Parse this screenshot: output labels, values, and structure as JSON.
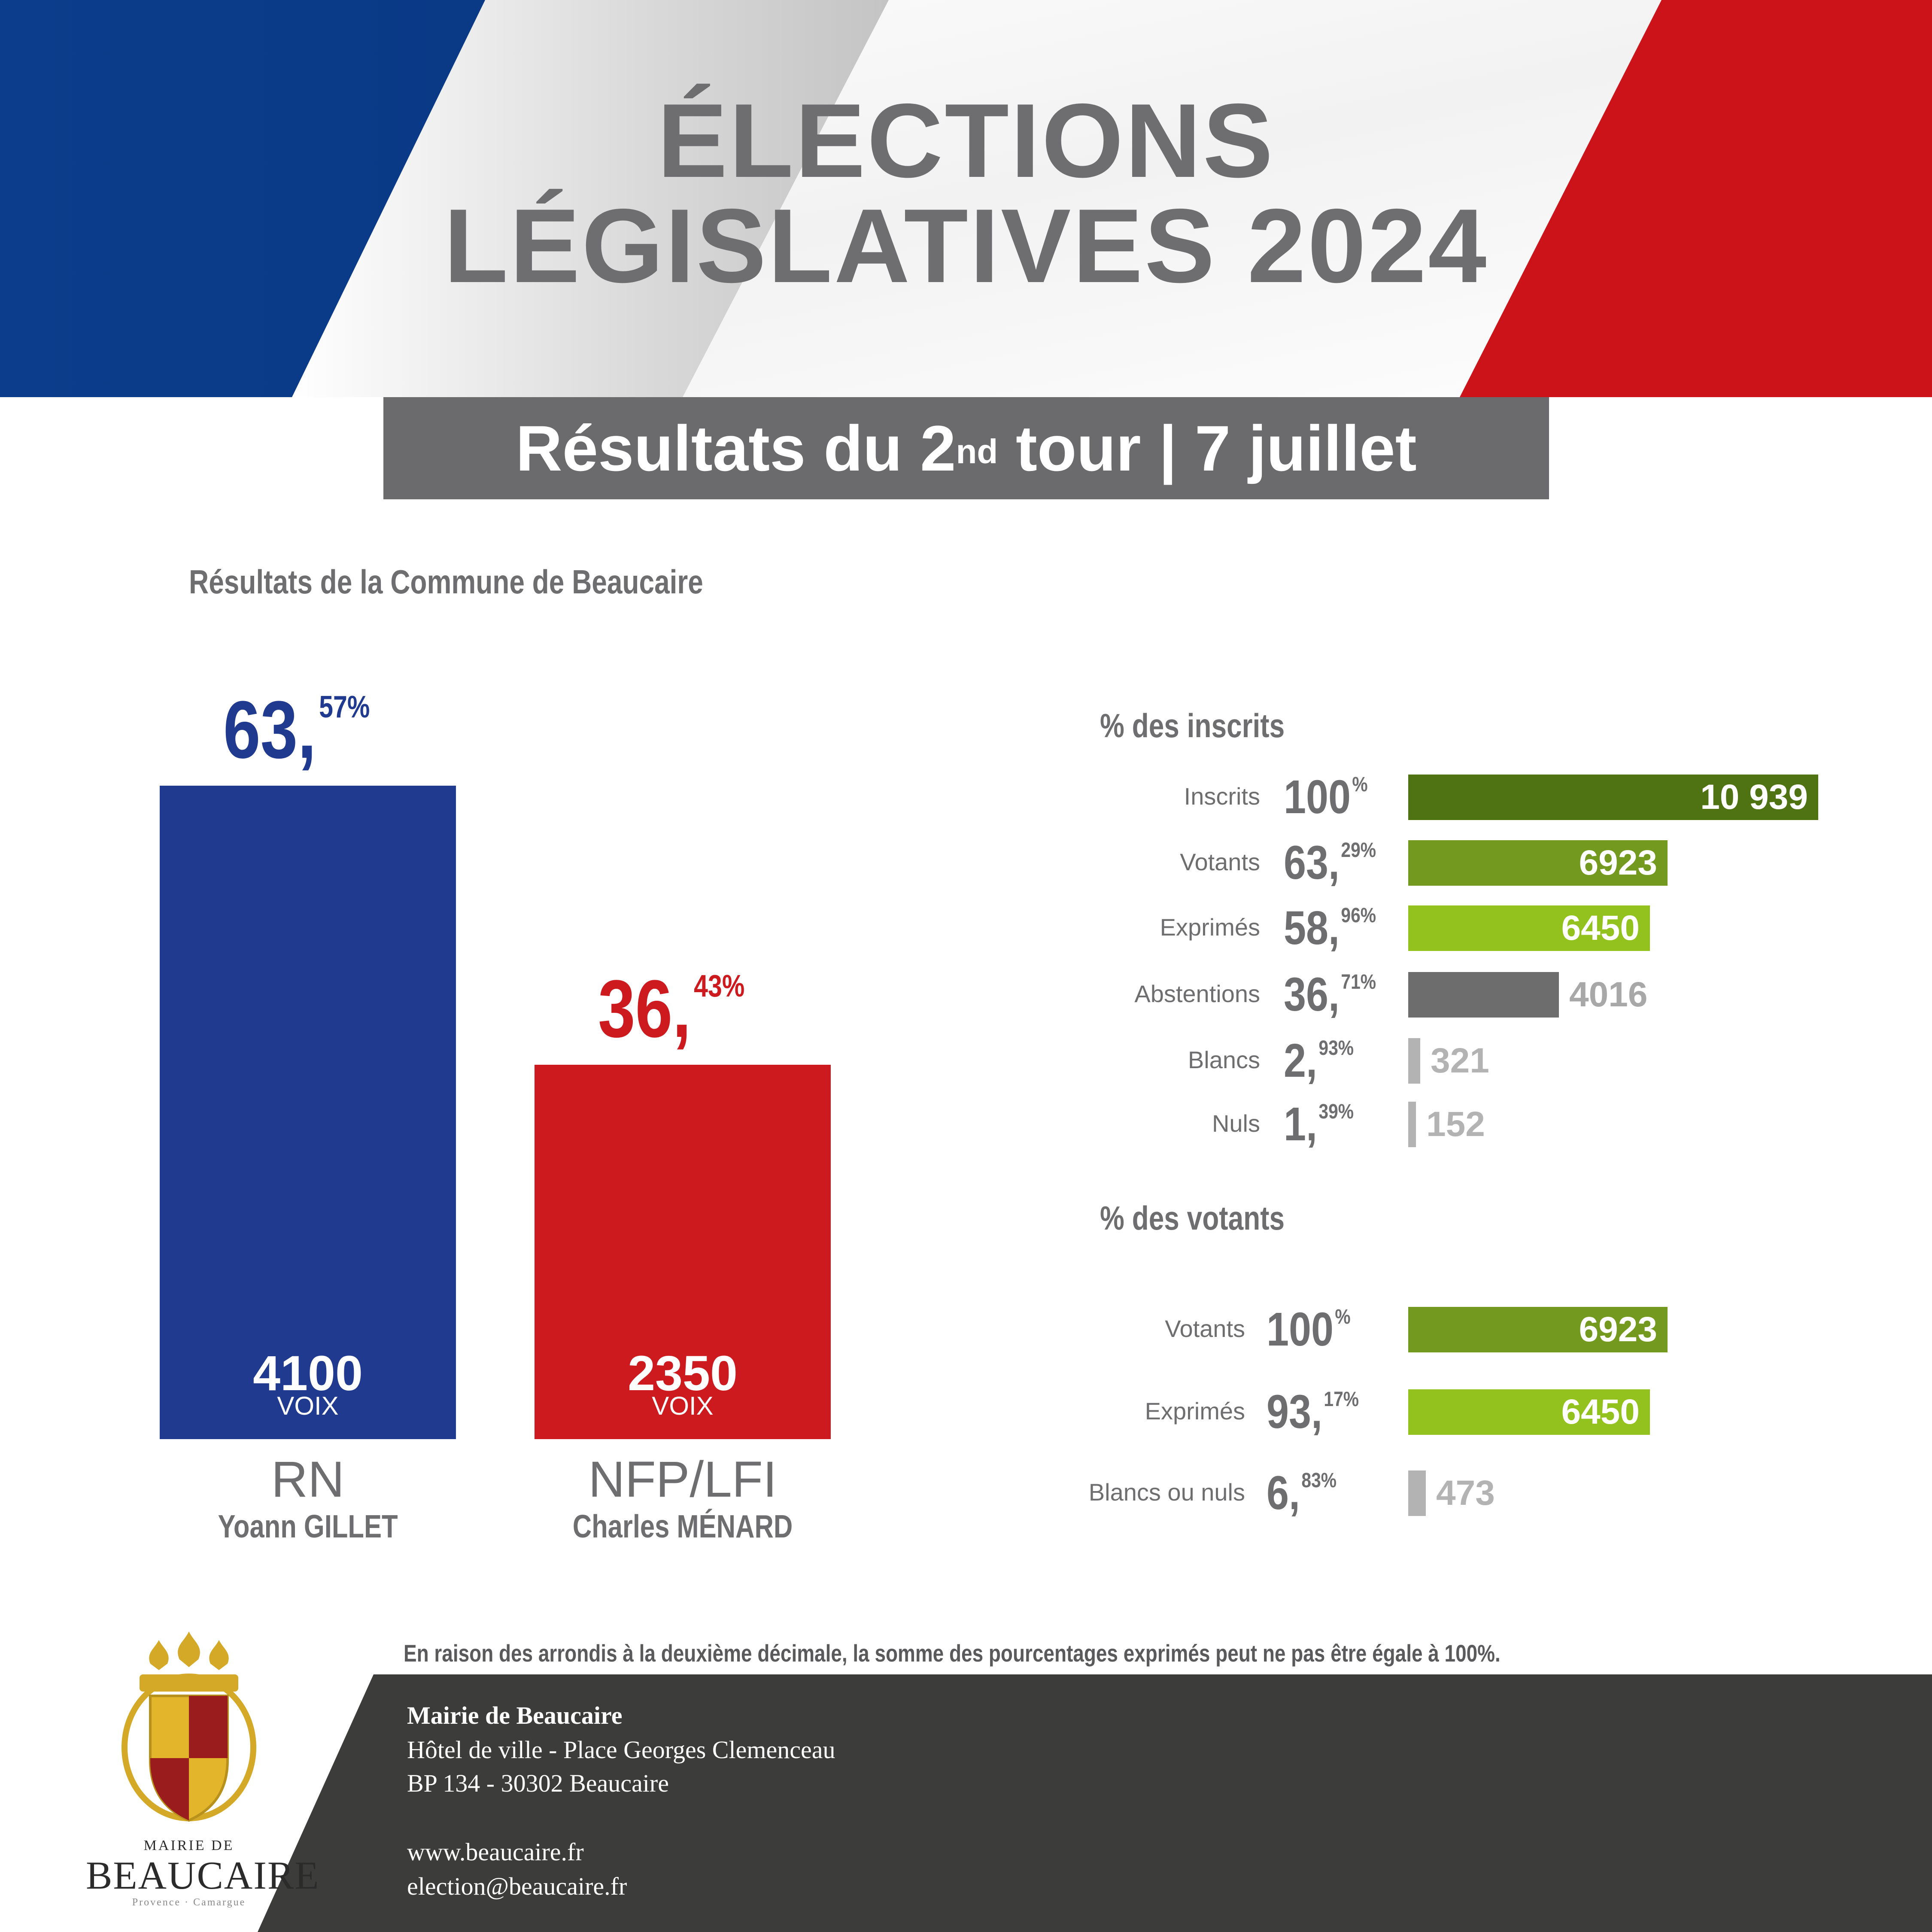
{
  "header": {
    "title_line1": "ÉLECTIONS",
    "title_line2": "LÉGISLATIVES 2024",
    "subtitle_main": "Résultats du 2",
    "subtitle_sup": "nd",
    "subtitle_rest": " tour | 7 juillet"
  },
  "colors": {
    "blue": "#1f3a8f",
    "red": "#cc1a1e",
    "grey_text": "#6e6e70",
    "dark_green": "#4f7213",
    "mid_green": "#73991f",
    "light_green": "#93c21e",
    "dark_grey": "#6d6d6d",
    "light_grey": "#b3b3b3",
    "footer": "#3c3c3b"
  },
  "chart_data": [
    {
      "type": "bar",
      "title": "Résultats de la Commune de Beaucaire",
      "categories": [
        "RN",
        "NFP/LFI"
      ],
      "candidates": [
        "Yoann GILLET",
        "Charles MÉNARD"
      ],
      "values": [
        63.57,
        36.43
      ],
      "votes": [
        4100,
        2350
      ],
      "value_int": [
        "63,",
        "36,"
      ],
      "value_frac": [
        "57%",
        "43%"
      ],
      "votes_unit": "VOIX",
      "ylim": [
        0,
        63.57
      ]
    },
    {
      "type": "bar",
      "title": "% des inscrits",
      "orientation": "horizontal",
      "rows": [
        {
          "label": "Inscrits",
          "pct_int": "100",
          "pct_frac": "%",
          "pct": 100,
          "value": 10939,
          "value_text": "10 939"
        },
        {
          "label": "Votants",
          "pct_int": "63,",
          "pct_frac": "29%",
          "pct": 63.29,
          "value": 6923,
          "value_text": "6923"
        },
        {
          "label": "Exprimés",
          "pct_int": "58,",
          "pct_frac": "96%",
          "pct": 58.96,
          "value": 6450,
          "value_text": "6450"
        },
        {
          "label": "Abstentions",
          "pct_int": "36,",
          "pct_frac": "71%",
          "pct": 36.71,
          "value": 4016,
          "value_text": "4016"
        },
        {
          "label": "Blancs",
          "pct_int": "2,",
          "pct_frac": "93%",
          "pct": 2.93,
          "value": 321,
          "value_text": "321"
        },
        {
          "label": "Nuls",
          "pct_int": "1,",
          "pct_frac": "39%",
          "pct": 1.39,
          "value": 152,
          "value_text": "152"
        }
      ]
    },
    {
      "type": "bar",
      "title": "% des votants",
      "orientation": "horizontal",
      "rows": [
        {
          "label": "Votants",
          "pct_int": "100",
          "pct_frac": "%",
          "pct": 100,
          "value": 6923,
          "value_text": "6923"
        },
        {
          "label": "Exprimés",
          "pct_int": "93,",
          "pct_frac": "17%",
          "pct": 93.17,
          "value": 6450,
          "value_text": "6450"
        },
        {
          "label": "Blancs ou nuls",
          "pct_int": "6,",
          "pct_frac": "83%",
          "pct": 6.83,
          "value": 473,
          "value_text": "473"
        }
      ]
    }
  ],
  "note": "En raison des arrondis à la deuxième décimale, la somme des pourcentages exprimés peut ne pas être égale à 100%.",
  "logo": {
    "line1": "MAIRIE DE",
    "line2": "BEAUCAIRE",
    "line3": "Provence · Camargue"
  },
  "footer": {
    "org": "Mairie de Beaucaire",
    "address1": "Hôtel de ville - Place Georges Clemenceau",
    "address2": "BP 134 - 30302 Beaucaire",
    "website": "www.beaucaire.fr",
    "email": "election@beaucaire.fr"
  }
}
